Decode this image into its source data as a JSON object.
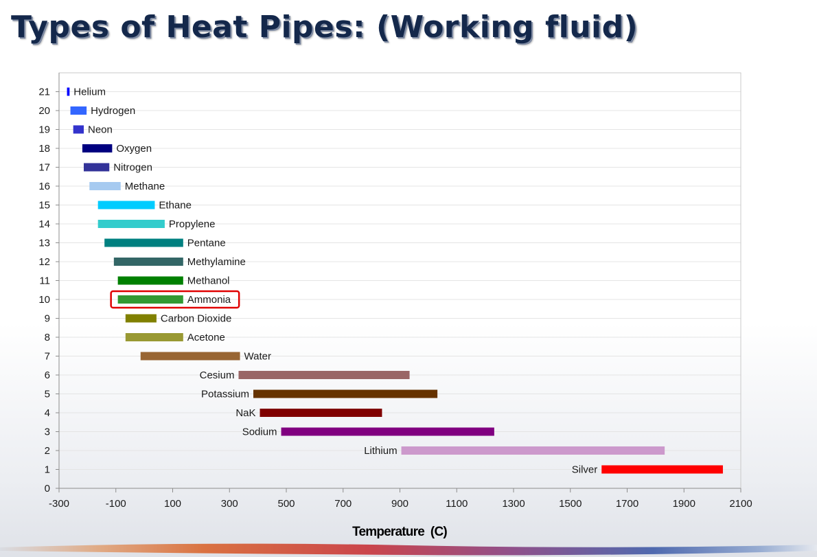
{
  "title": "Types of Heat Pipes: (Working fluid)",
  "chart_data": {
    "type": "bar",
    "orientation": "horizontal-range",
    "xlabel": "Temperature  (C)",
    "ylabel": "",
    "xlim": [
      -300,
      2100
    ],
    "ylim": [
      0,
      21
    ],
    "x_ticks": [
      -300,
      -100,
      100,
      300,
      500,
      700,
      900,
      1100,
      1300,
      1500,
      1700,
      1900,
      2100
    ],
    "y_ticks": [
      0,
      1,
      2,
      3,
      4,
      5,
      6,
      7,
      8,
      9,
      10,
      11,
      12,
      13,
      14,
      15,
      16,
      17,
      18,
      19,
      20,
      21
    ],
    "grid": "horizontal",
    "legend": "none",
    "series": [
      {
        "name": "Helium",
        "y": 21,
        "min": -272,
        "max": -263,
        "color": "#0000ff",
        "label_side": "right"
      },
      {
        "name": "Hydrogen",
        "y": 20,
        "min": -260,
        "max": -203,
        "color": "#3366ff",
        "label_side": "right"
      },
      {
        "name": "Neon",
        "y": 19,
        "min": -250,
        "max": -213,
        "color": "#3333cc",
        "label_side": "right"
      },
      {
        "name": "Oxygen",
        "y": 18,
        "min": -218,
        "max": -113,
        "color": "#000080",
        "label_side": "right"
      },
      {
        "name": "Nitrogen",
        "y": 17,
        "min": -213,
        "max": -123,
        "color": "#333399",
        "label_side": "right"
      },
      {
        "name": "Methane",
        "y": 16,
        "min": -193,
        "max": -83,
        "color": "#a6caf0",
        "label_side": "right"
      },
      {
        "name": "Ethane",
        "y": 15,
        "min": -163,
        "max": 37,
        "color": "#00ccff",
        "label_side": "right"
      },
      {
        "name": "Propylene",
        "y": 14,
        "min": -163,
        "max": 72,
        "color": "#33cccc",
        "label_side": "right"
      },
      {
        "name": "Pentane",
        "y": 13,
        "min": -140,
        "max": 137,
        "color": "#008080",
        "label_side": "right"
      },
      {
        "name": "Methylamine",
        "y": 12,
        "min": -107,
        "max": 137,
        "color": "#336666",
        "label_side": "right"
      },
      {
        "name": "Methanol",
        "y": 11,
        "min": -93,
        "max": 137,
        "color": "#008000",
        "label_side": "right"
      },
      {
        "name": "Ammonia",
        "y": 10,
        "min": -93,
        "max": 137,
        "color": "#339933",
        "label_side": "right",
        "highlighted": true
      },
      {
        "name": "Carbon Dioxide",
        "y": 9,
        "min": -66,
        "max": 43,
        "color": "#808000",
        "label_side": "right"
      },
      {
        "name": "Acetone",
        "y": 8,
        "min": -66,
        "max": 137,
        "color": "#999933",
        "label_side": "right"
      },
      {
        "name": "Water",
        "y": 7,
        "min": -13,
        "max": 337,
        "color": "#996633",
        "label_side": "right"
      },
      {
        "name": "Cesium",
        "y": 6,
        "min": 332,
        "max": 934,
        "color": "#996666",
        "label_side": "left"
      },
      {
        "name": "Potassium",
        "y": 5,
        "min": 384,
        "max": 1032,
        "color": "#663300",
        "label_side": "left"
      },
      {
        "name": "NaK",
        "y": 4,
        "min": 407,
        "max": 837,
        "color": "#800000",
        "label_side": "left"
      },
      {
        "name": "Sodium",
        "y": 3,
        "min": 482,
        "max": 1232,
        "color": "#800080",
        "label_side": "left"
      },
      {
        "name": "Lithium",
        "y": 2,
        "min": 905,
        "max": 1832,
        "color": "#cc99cc",
        "label_side": "left"
      },
      {
        "name": "Silver",
        "y": 1,
        "min": 1610,
        "max": 2037,
        "color": "#ff0000",
        "label_side": "left"
      }
    ],
    "highlight_color": "#e00000"
  }
}
